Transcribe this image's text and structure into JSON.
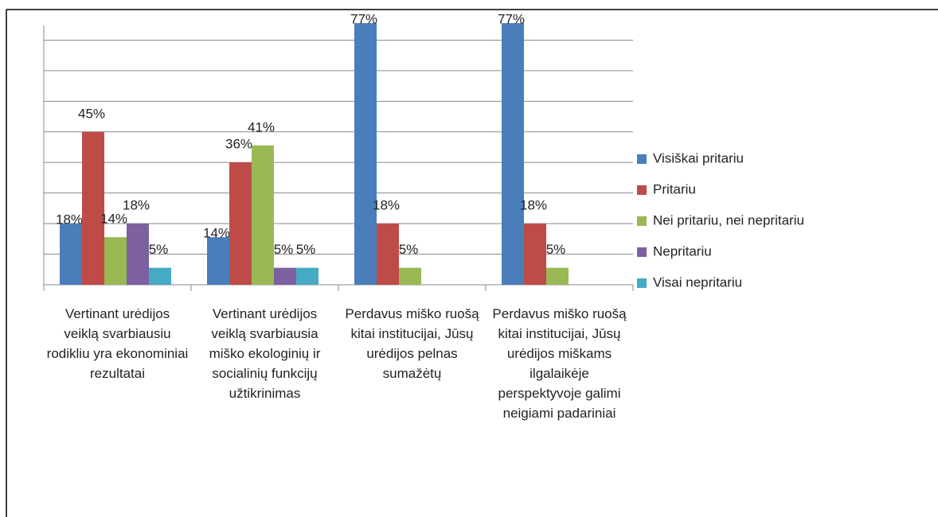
{
  "chart_data": {
    "type": "bar",
    "categories": [
      "Vertinant urėdijos veiklą svarbiausiu rodikliu yra ekonominiai rezultatai",
      "Vertinant urėdijos veiklą svarbiausia miško ekologinių ir socialinių funkcijų užtikrinimas",
      "Perdavus miško ruošą kitai institucijai, Jūsų urėdijos pelnas sumažėtų",
      "Perdavus miško ruošą kitai institucijai, Jūsų urėdijos miškams ilgalaikėje perspektyvoje galimi neigiami padariniai"
    ],
    "series": [
      {
        "name": "Visiškai pritariu",
        "color": "#4a7ebb",
        "values": [
          18,
          14,
          77,
          77
        ],
        "value_labels": [
          "18%",
          "14%",
          "77%",
          "77%"
        ]
      },
      {
        "name": "Pritariu",
        "color": "#be4b48",
        "values": [
          45,
          36,
          18,
          18
        ],
        "value_labels": [
          "45%",
          "36%",
          "18%",
          "18%"
        ]
      },
      {
        "name": "Nei pritariu, nei nepritariu",
        "color": "#98b954",
        "values": [
          14,
          41,
          5,
          5
        ],
        "value_labels": [
          "14%",
          "41%",
          "5%",
          "5%"
        ]
      },
      {
        "name": "Nepritariu",
        "color": "#7d60a0",
        "values": [
          18,
          5,
          null,
          null
        ],
        "value_labels": [
          "18%",
          "5%",
          null,
          null
        ]
      },
      {
        "name": "Visai nepritariu",
        "color": "#46aac5",
        "values": [
          5,
          5,
          null,
          null
        ],
        "value_labels": [
          "5%",
          "5%",
          null,
          null
        ]
      }
    ],
    "ylim": [
      0,
      81
    ],
    "yticks": [
      0,
      9,
      18,
      27,
      36,
      45,
      54,
      63,
      72
    ],
    "grid": true,
    "legend": "right"
  }
}
